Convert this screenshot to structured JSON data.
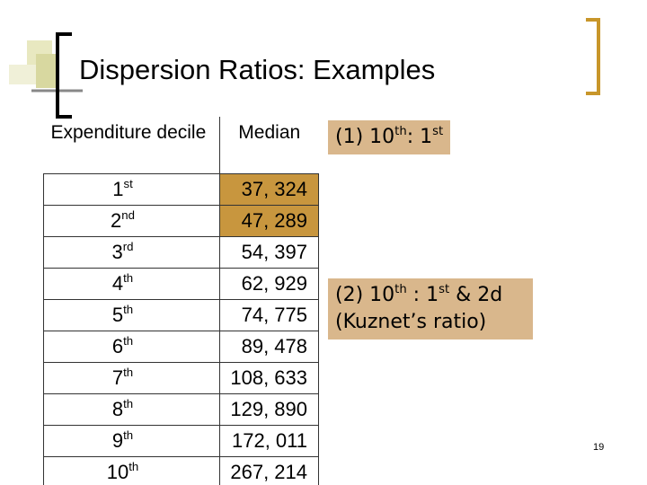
{
  "header": {
    "title": "Dispersion Ratios: Examples"
  },
  "table": {
    "columns": [
      "Expenditure decile",
      "Median"
    ],
    "rows": [
      {
        "decile": "1",
        "suffix": "st",
        "median": "37, 324",
        "highlight": true
      },
      {
        "decile": "2",
        "suffix": "nd",
        "median": "47, 289",
        "highlight": true
      },
      {
        "decile": "3",
        "suffix": "rd",
        "median": "54, 397"
      },
      {
        "decile": "4",
        "suffix": "th",
        "median": "62, 929"
      },
      {
        "decile": "5",
        "suffix": "th",
        "median": "74, 775"
      },
      {
        "decile": "6",
        "suffix": "th",
        "median": "89, 478"
      },
      {
        "decile": "7",
        "suffix": "th",
        "median": "108, 633"
      },
      {
        "decile": "8",
        "suffix": "th",
        "median": "129, 890"
      },
      {
        "decile": "9",
        "suffix": "th",
        "median": "172, 011"
      },
      {
        "decile": "10",
        "suffix": "th",
        "median": "267, 214"
      }
    ]
  },
  "notes": [
    {
      "lines": [
        [
          {
            "text": "(1) 10"
          },
          {
            "sup": "th"
          },
          {
            "text": ": 1"
          },
          {
            "sup": "st"
          }
        ]
      ]
    },
    {
      "lines": [
        [
          {
            "text": "(2) 10"
          },
          {
            "sup": "th"
          },
          {
            "text": " : 1"
          },
          {
            "sup": "st"
          },
          {
            "text": " & 2d"
          }
        ],
        [
          {
            "text": "(Kuznet’s ratio)"
          }
        ]
      ]
    }
  ],
  "page_number": "19"
}
